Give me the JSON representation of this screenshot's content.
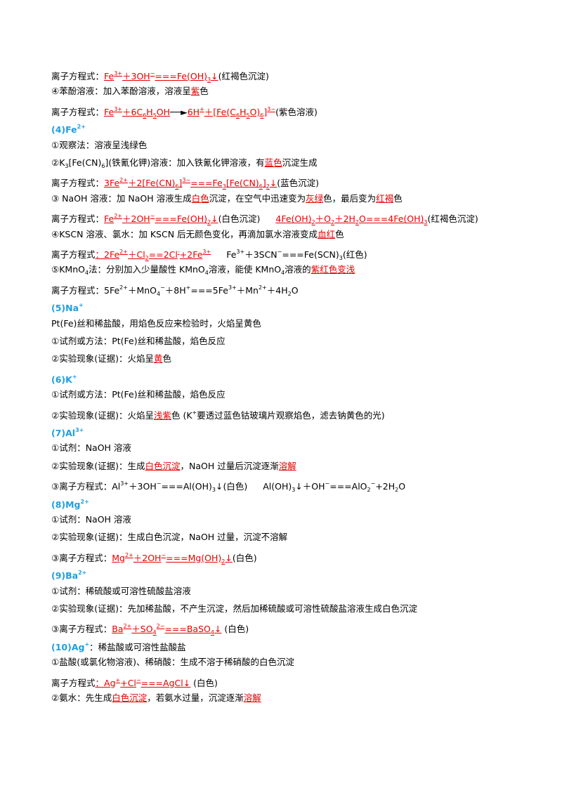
{
  "lines": [
    [
      [
        {
          "t": "离子方程式："
        },
        {
          "t": "Fe",
          "s": "red"
        },
        {
          "t": "3+",
          "s": "red-sup"
        },
        {
          "t": "＋3OH",
          "s": "red"
        },
        {
          "t": "−",
          "s": "red-sup"
        },
        {
          "t": "===Fe(OH)",
          "s": "red"
        },
        {
          "t": "3",
          "s": "red-sub"
        },
        {
          "t": "↓",
          "s": "red"
        },
        {
          "t": "(红褐色沉淀)"
        }
      ]
    ],
    [
      [
        {
          "t": "④苯酚溶液：加入苯酚溶液，溶液呈"
        },
        {
          "t": "紫",
          "s": "red"
        },
        {
          "t": "色"
        }
      ]
    ],
    [
      [
        {
          "t": "离子方程式："
        },
        {
          "t": "Fe",
          "s": "red"
        },
        {
          "t": "3+",
          "s": "red-sup"
        },
        {
          "t": "＋6C",
          "s": "red"
        },
        {
          "t": "6",
          "s": "red-sub"
        },
        {
          "t": "H",
          "s": "red"
        },
        {
          "t": "5",
          "s": "red-sub"
        },
        {
          "t": "OH",
          "s": "red"
        },
        {
          "t": "──►"
        },
        {
          "t": "6H",
          "s": "red"
        },
        {
          "t": "+",
          "s": "red-sup"
        },
        {
          "t": "＋[Fe(C",
          "s": "red"
        },
        {
          "t": "6",
          "s": "red-sub"
        },
        {
          "t": "H",
          "s": "red"
        },
        {
          "t": "5",
          "s": "red-sub"
        },
        {
          "t": "O)",
          "s": "red"
        },
        {
          "t": "6",
          "s": "red-sub"
        },
        {
          "t": "]",
          "s": "red"
        },
        {
          "t": "3−",
          "s": "red-sup"
        },
        {
          "t": "(紫色溶液)"
        }
      ]
    ],
    [
      [
        {
          "t": "(4)Fe",
          "s": "head"
        },
        {
          "t": "2+",
          "s": "head-sup"
        }
      ]
    ],
    [
      [
        {
          "t": "①观察法：溶液呈浅绿色"
        }
      ]
    ],
    [
      [
        {
          "t": "②K"
        },
        {
          "t": "3",
          "s": "sub"
        },
        {
          "t": "[Fe(CN)"
        },
        {
          "t": "6",
          "s": "sub"
        },
        {
          "t": "](铁氰化钾)溶液：加入铁氰化钾溶液，有"
        },
        {
          "t": "蓝色",
          "s": "red"
        },
        {
          "t": "沉淀生成"
        }
      ]
    ],
    [
      [
        {
          "t": "离子方程式："
        },
        {
          "t": "3Fe",
          "s": "red"
        },
        {
          "t": "2+",
          "s": "red-sup"
        },
        {
          "t": "＋2[Fe(CN)",
          "s": "red"
        },
        {
          "t": "6",
          "s": "red-sub"
        },
        {
          "t": "]",
          "s": "red"
        },
        {
          "t": "3−",
          "s": "red-sup"
        },
        {
          "t": "===Fe",
          "s": "red"
        },
        {
          "t": "3",
          "s": "red-sub"
        },
        {
          "t": "[Fe(CN)",
          "s": "red"
        },
        {
          "t": "6",
          "s": "red-sub"
        },
        {
          "t": "]",
          "s": "red"
        },
        {
          "t": "2",
          "s": "red-sub"
        },
        {
          "t": "↓",
          "s": "red"
        },
        {
          "t": "(蓝色沉淀)"
        }
      ]
    ],
    [
      [
        {
          "t": "③ NaOH 溶液：加 NaOH 溶液生成"
        },
        {
          "t": "白色",
          "s": "red"
        },
        {
          "t": "沉淀，在空气中迅速变为"
        },
        {
          "t": "灰绿",
          "s": "red"
        },
        {
          "t": "色，最后变为"
        },
        {
          "t": "红褐",
          "s": "red"
        },
        {
          "t": "色"
        }
      ]
    ],
    [
      [
        {
          "t": "离子方程式："
        },
        {
          "t": "Fe",
          "s": "red"
        },
        {
          "t": "2+",
          "s": "red-sup"
        },
        {
          "t": "＋2OH",
          "s": "red"
        },
        {
          "t": "−",
          "s": "red-sup"
        },
        {
          "t": "===Fe(OH)",
          "s": "red"
        },
        {
          "t": "2",
          "s": "red-sub"
        },
        {
          "t": "↓",
          "s": "red"
        },
        {
          "t": "(白色沉淀)"
        }
      ],
      [
        {
          "t": "4Fe(OH)",
          "s": "red"
        },
        {
          "t": "2",
          "s": "red-sub"
        },
        {
          "t": "＋O",
          "s": "red"
        },
        {
          "t": "2",
          "s": "red-sub"
        },
        {
          "t": "＋2H",
          "s": "red"
        },
        {
          "t": "2",
          "s": "red-sub"
        },
        {
          "t": "O===4Fe(OH)",
          "s": "red"
        },
        {
          "t": "3",
          "s": "red-sub"
        },
        {
          "t": "(红褐色沉淀)"
        }
      ]
    ],
    [
      [
        {
          "t": "④KSCN 溶液、氯水：加 KSCN 后无颜色变化，再滴加氯水溶液变成"
        },
        {
          "t": "血红",
          "s": "red"
        },
        {
          "t": "色"
        }
      ]
    ],
    [
      [
        {
          "t": "离子方程式"
        },
        {
          "t": "：2Fe",
          "s": "red"
        },
        {
          "t": "2+",
          "s": "red-sup"
        },
        {
          "t": "＋Cl",
          "s": "red"
        },
        {
          "t": "2",
          "s": "red-sub"
        },
        {
          "t": "==2Cl",
          "s": "red"
        },
        {
          "t": "-",
          "s": "red-sup"
        },
        {
          "t": "+2Fe",
          "s": "red"
        },
        {
          "t": "3+",
          "s": "red-sup"
        }
      ],
      [
        {
          "t": "Fe"
        },
        {
          "t": "3+",
          "s": "sup"
        },
        {
          "t": "＋3SCN"
        },
        {
          "t": "−",
          "s": "sup"
        },
        {
          "t": "===Fe(SCN)"
        },
        {
          "t": "3",
          "s": "sub"
        },
        {
          "t": "(红色)"
        }
      ]
    ],
    [
      [
        {
          "t": "⑤KMnO"
        },
        {
          "t": "4",
          "s": "sub"
        },
        {
          "t": "法：分别加入少量酸性 KMnO"
        },
        {
          "t": "4",
          "s": "sub"
        },
        {
          "t": "溶液，能使 KMnO"
        },
        {
          "t": "4",
          "s": "sub"
        },
        {
          "t": "溶液的"
        },
        {
          "t": "紫红色变浅",
          "s": "red"
        }
      ]
    ],
    [
      [
        {
          "t": "离子方程式：5Fe"
        },
        {
          "t": "2+",
          "s": "sup"
        },
        {
          "t": "＋MnO"
        },
        {
          "t": "4",
          "s": "sub"
        },
        {
          "t": "−",
          "s": "sup"
        },
        {
          "t": "＋8H"
        },
        {
          "t": "+",
          "s": "sup"
        },
        {
          "t": "===5Fe"
        },
        {
          "t": "3+",
          "s": "sup"
        },
        {
          "t": "＋Mn"
        },
        {
          "t": "2+",
          "s": "sup"
        },
        {
          "t": "＋4H"
        },
        {
          "t": "2",
          "s": "sub"
        },
        {
          "t": "O"
        }
      ]
    ],
    [
      [
        {
          "t": "(5)Na",
          "s": "head"
        },
        {
          "t": "+",
          "s": "head-sup"
        }
      ]
    ],
    [
      [
        {
          "t": "Pt(Fe)丝和稀盐酸，用焰色反应来检验时，火焰呈黄色"
        }
      ]
    ],
    [
      [
        {
          "t": "①试剂或方法：Pt(Fe)丝和稀盐酸，焰色反应"
        }
      ]
    ],
    [
      [
        {
          "t": "②实验现象(证据)：火焰呈"
        },
        {
          "t": "黄",
          "s": "red"
        },
        {
          "t": "色"
        }
      ]
    ],
    [
      [
        {
          "t": "(6)K",
          "s": "head"
        },
        {
          "t": "+",
          "s": "head-sup"
        }
      ]
    ],
    [
      [
        {
          "t": "①试剂或方法：Pt(Fe)丝和稀盐酸，焰色反应"
        }
      ]
    ],
    [
      [
        {
          "t": "②实验现象(证据)：火焰呈"
        },
        {
          "t": "浅紫",
          "s": "red"
        },
        {
          "t": "色 (K"
        },
        {
          "t": "+",
          "s": "sup"
        },
        {
          "t": "要透过蓝色钴玻璃片观察焰色，滤去钠黄色的光)"
        }
      ]
    ],
    [
      [
        {
          "t": "(7)Al",
          "s": "head"
        },
        {
          "t": "3+",
          "s": "head-sup"
        }
      ]
    ],
    [
      [
        {
          "t": "①试剂：NaOH 溶液"
        }
      ]
    ],
    [
      [
        {
          "t": "②实验现象(证据)：生成"
        },
        {
          "t": "白色沉淀",
          "s": "red"
        },
        {
          "t": "，NaOH 过量后沉淀逐渐"
        },
        {
          "t": "溶解",
          "s": "red"
        }
      ]
    ],
    [
      [
        {
          "t": "③离子方程式：Al"
        },
        {
          "t": "3+",
          "s": "sup"
        },
        {
          "t": "＋3OH"
        },
        {
          "t": "−",
          "s": "sup"
        },
        {
          "t": "===Al(OH)"
        },
        {
          "t": "3",
          "s": "sub"
        },
        {
          "t": "↓(白色)"
        }
      ],
      [
        {
          "t": "Al(OH)"
        },
        {
          "t": "3",
          "s": "sub"
        },
        {
          "t": "↓＋OH"
        },
        {
          "t": "−",
          "s": "sup"
        },
        {
          "t": "===AlO"
        },
        {
          "t": "2",
          "s": "sub"
        },
        {
          "t": "−",
          "s": "sup"
        },
        {
          "t": "+2H"
        },
        {
          "t": "2",
          "s": "sub"
        },
        {
          "t": "O"
        }
      ]
    ],
    [
      [
        {
          "t": "(8)Mg",
          "s": "head"
        },
        {
          "t": "2+",
          "s": "head-sup"
        }
      ]
    ],
    [
      [
        {
          "t": "①试剂：NaOH 溶液"
        }
      ]
    ],
    [
      [
        {
          "t": "②实验现象(证据)：生成白色沉淀，NaOH 过量，沉淀不溶解"
        }
      ]
    ],
    [
      [
        {
          "t": "③离子方程式："
        },
        {
          "t": "Mg",
          "s": "red"
        },
        {
          "t": "2+",
          "s": "red-sup"
        },
        {
          "t": "＋2OH",
          "s": "red"
        },
        {
          "t": "−",
          "s": "red-sup"
        },
        {
          "t": "===Mg(OH)",
          "s": "red"
        },
        {
          "t": "2",
          "s": "red-sub"
        },
        {
          "t": "↓",
          "s": "red"
        },
        {
          "t": "(白色)"
        }
      ]
    ],
    [
      [
        {
          "t": "(9)Ba",
          "s": "head"
        },
        {
          "t": "2+",
          "s": "head-sup"
        }
      ]
    ],
    [
      [
        {
          "t": "①试剂：稀硫酸或可溶性硫酸盐溶液"
        }
      ]
    ],
    [
      [
        {
          "t": "②实验现象(证据)：先加稀盐酸，不产生沉淀，然后加稀硫酸或可溶性硫酸盐溶液生成白色沉淀"
        }
      ]
    ],
    [
      [
        {
          "t": "③离子方程式："
        },
        {
          "t": "Ba",
          "s": "red"
        },
        {
          "t": "2+",
          "s": "red-sup"
        },
        {
          "t": "＋SO",
          "s": "red"
        },
        {
          "t": "4",
          "s": "red-sub"
        },
        {
          "t": "2−",
          "s": "red-sup"
        },
        {
          "t": "===BaSO",
          "s": "red"
        },
        {
          "t": "4",
          "s": "red-sub"
        },
        {
          "t": "↓",
          "s": "red"
        },
        {
          "t": " (白色)"
        }
      ]
    ],
    [
      [
        {
          "t": "(10)Ag",
          "s": "head"
        },
        {
          "t": "+",
          "s": "head-sup"
        },
        {
          "t": "：稀盐酸或可溶性盐酸盐"
        }
      ]
    ],
    [
      [
        {
          "t": "①盐酸(或氯化物溶液)、稀硝酸：生成不溶于稀硝酸的白色沉淀"
        }
      ]
    ],
    [
      [
        {
          "t": " 离子方程式"
        },
        {
          "t": "：Ag",
          "s": "red"
        },
        {
          "t": "+",
          "s": "red-sup"
        },
        {
          "t": "+Cl",
          "s": "red"
        },
        {
          "t": "−",
          "s": "red-sup"
        },
        {
          "t": "===AgCl↓",
          "s": "red"
        },
        {
          "t": " (白色)"
        }
      ]
    ],
    [
      [
        {
          "t": "②氨水：先生成"
        },
        {
          "t": "白色沉淀",
          "s": "red"
        },
        {
          "t": "，若氨水过量，沉淀逐渐"
        },
        {
          "t": "溶解",
          "s": "red"
        }
      ]
    ]
  ]
}
